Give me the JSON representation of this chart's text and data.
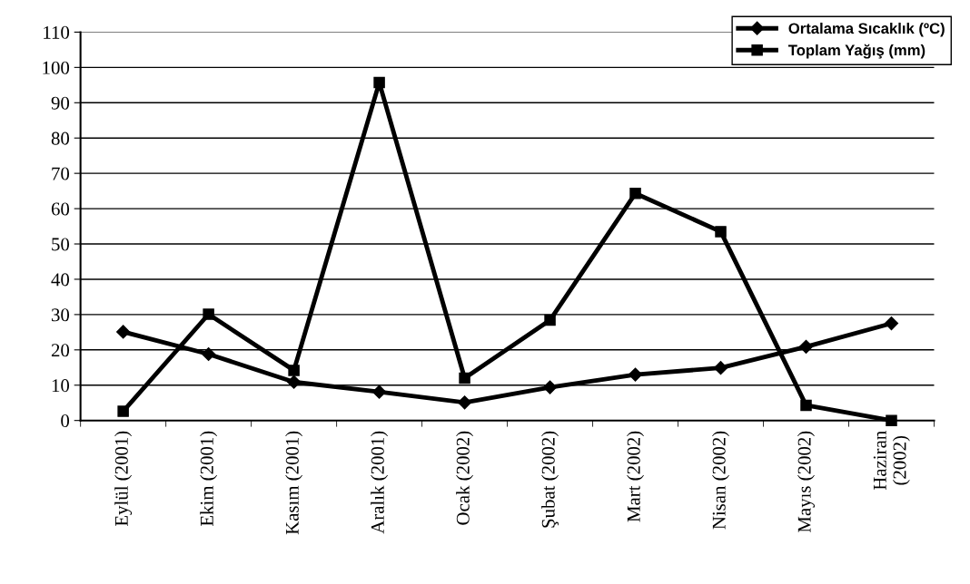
{
  "chart_data": {
    "type": "line",
    "categories": [
      "Eylül (2001)",
      "Ekim (2001)",
      "Kasım (2001)",
      "Aralık (2001)",
      "Ocak (2002)",
      "Şubat (2002)",
      "Mart (2002)",
      "Nisan (2002)",
      "Mayıs (2002)",
      "Haziran\n(2002)"
    ],
    "series": [
      {
        "name": "Ortalama Sıcaklık (ºC)",
        "color": "#000000",
        "marker": "diamond",
        "values": [
          25.1,
          18.8,
          10.9,
          8.1,
          5.1,
          9.4,
          13.0,
          14.9,
          20.9,
          27.5
        ]
      },
      {
        "name": "Toplam Yağış (mm)",
        "color": "#000000",
        "marker": "square",
        "values": [
          2.6,
          30.1,
          14.2,
          95.7,
          12.0,
          28.4,
          64.3,
          53.5,
          4.3,
          0
        ]
      }
    ],
    "ylim": [
      0,
      110
    ],
    "yticks": [
      0,
      10,
      20,
      30,
      40,
      50,
      60,
      70,
      80,
      90,
      100,
      110
    ],
    "grid": "y",
    "legend": "top right",
    "line_style": "solid"
  }
}
